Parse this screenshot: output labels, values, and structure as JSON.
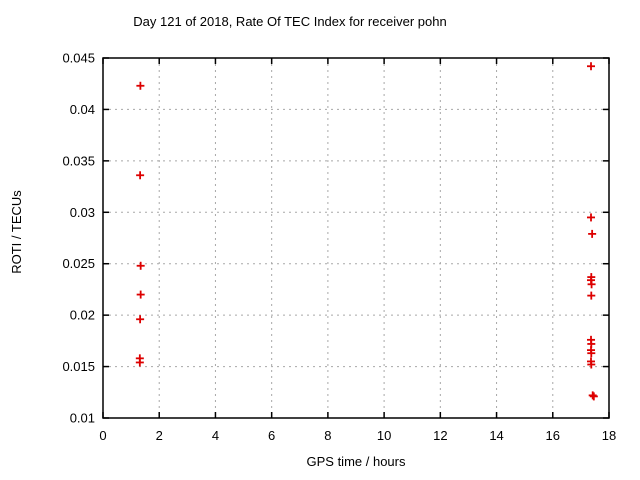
{
  "window": {
    "background": "#ffffff",
    "text_color": "#000000"
  },
  "chart_data": {
    "type": "scatter",
    "title": "Day 121 of 2018, Rate Of TEC Index for receiver pohn",
    "xlabel": "GPS time / hours",
    "ylabel": "ROTI / TECUs",
    "xlim": [
      0,
      18
    ],
    "ylim": [
      0.01,
      0.045
    ],
    "xticks": [
      0,
      2,
      4,
      6,
      8,
      10,
      12,
      14,
      16,
      18
    ],
    "yticks": [
      0.01,
      0.015,
      0.02,
      0.025,
      0.03,
      0.035,
      0.04,
      0.045
    ],
    "grid": true,
    "grid_style": "dashed",
    "grid_color": "#a8a8a8",
    "frame_color": "#000000",
    "marker": "plus",
    "marker_color": "#dd0000",
    "legend": "none",
    "series": [
      {
        "name": "ROTI",
        "points": [
          [
            1.33,
            0.0423
          ],
          [
            1.32,
            0.0336
          ],
          [
            1.34,
            0.0248
          ],
          [
            1.34,
            0.022
          ],
          [
            1.32,
            0.0196
          ],
          [
            1.31,
            0.0158
          ],
          [
            1.31,
            0.0154
          ],
          [
            17.36,
            0.0442
          ],
          [
            17.36,
            0.0295
          ],
          [
            17.4,
            0.0279
          ],
          [
            17.37,
            0.0237
          ],
          [
            17.36,
            0.0234
          ],
          [
            17.38,
            0.023
          ],
          [
            17.37,
            0.0219
          ],
          [
            17.36,
            0.0176
          ],
          [
            17.37,
            0.0172
          ],
          [
            17.36,
            0.0166
          ],
          [
            17.37,
            0.0163
          ],
          [
            17.36,
            0.0155
          ],
          [
            17.37,
            0.0152
          ],
          [
            17.42,
            0.0122
          ],
          [
            17.46,
            0.0121
          ]
        ]
      }
    ]
  }
}
